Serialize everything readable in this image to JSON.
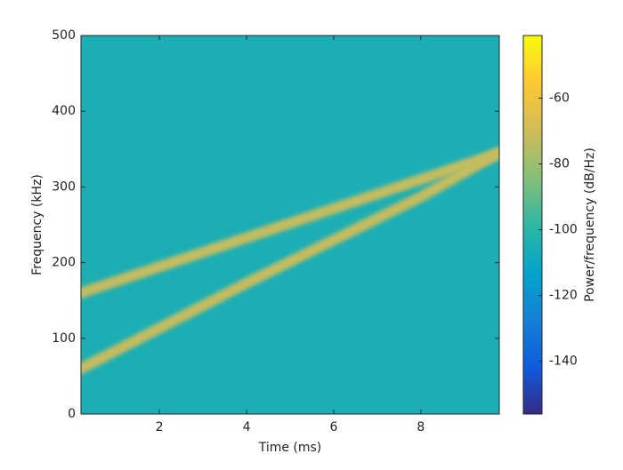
{
  "chart_data": {
    "type": "spectrogram",
    "xlabel": "Time (ms)",
    "ylabel": "Frequency (kHz)",
    "colorbar_label": "Power/frequency (dB/Hz)",
    "xlim": [
      0.2,
      9.8
    ],
    "xticks": [
      2,
      4,
      6,
      8
    ],
    "ylim": [
      0,
      500
    ],
    "yticks": [
      0,
      100,
      200,
      300,
      400,
      500
    ],
    "clim": [
      -156,
      -41
    ],
    "cticks": [
      -140,
      -120,
      -100,
      -80,
      -60
    ],
    "colormap": [
      "#352a87",
      "#0f5cdd",
      "#1481d6",
      "#06a4ca",
      "#2eb7a4",
      "#87bf77",
      "#d1bb59",
      "#fec832",
      "#f9fb0e"
    ],
    "background_power": -105,
    "series": [
      {
        "x": [
          0.2,
          4,
          8,
          9.8
        ],
        "values": [
          160,
          233,
          310,
          345
        ],
        "power": -72
      },
      {
        "x": [
          0.2,
          4,
          8,
          9.8
        ],
        "values": [
          60,
          173,
          287,
          345
        ],
        "power": -72
      }
    ]
  }
}
